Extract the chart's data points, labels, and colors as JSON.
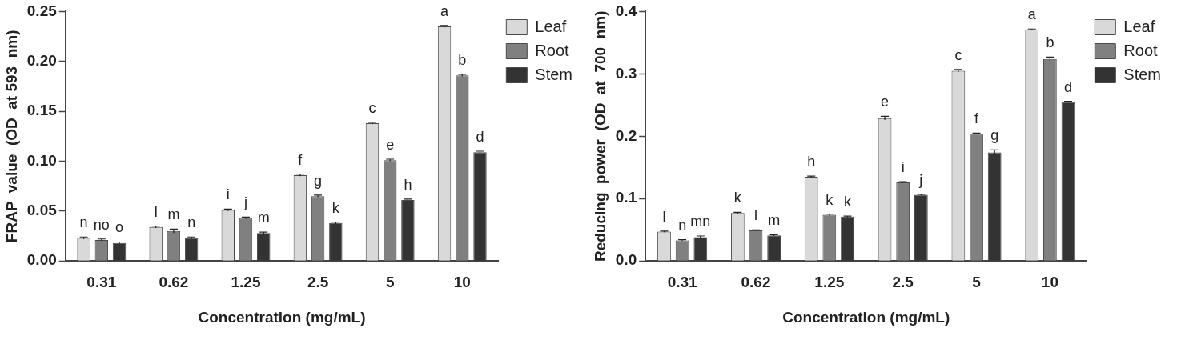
{
  "chart_data": [
    {
      "type": "bar",
      "categories": [
        "0.31",
        "0.62",
        "1.25",
        "2.5",
        "5",
        "10"
      ],
      "xlabel": "Concentration (mg/mL)",
      "ylabel": "FRAP  value  (OD  at 593  nm)",
      "series": [
        {
          "name": "Leaf",
          "color": "#d9d9d9",
          "values": [
            0.023,
            0.034,
            0.051,
            0.086,
            0.138,
            0.235
          ],
          "errors": [
            0.001,
            0.001,
            0.001,
            0.001,
            0.001,
            0.001
          ],
          "value_labels": [
            "n",
            "l",
            "i",
            "f",
            "c",
            "a"
          ]
        },
        {
          "name": "Root",
          "color": "#808080",
          "values": [
            0.021,
            0.03,
            0.043,
            0.065,
            0.101,
            0.186
          ],
          "errors": [
            0.001,
            0.002,
            0.001,
            0.001,
            0.001,
            0.001
          ],
          "value_labels": [
            "no",
            "m",
            "j",
            "g",
            "e",
            "b"
          ]
        },
        {
          "name": "Stem",
          "color": "#333333",
          "values": [
            0.018,
            0.023,
            0.028,
            0.038,
            0.061,
            0.109
          ],
          "errors": [
            0.001,
            0.001,
            0.001,
            0.001,
            0.001,
            0.001
          ],
          "value_labels": [
            "o",
            "n",
            "m",
            "k",
            "h",
            "d"
          ]
        }
      ],
      "ylim": [
        0,
        0.25
      ],
      "yticks": [
        {
          "value": 0,
          "label": "0.00"
        },
        {
          "value": 0.05,
          "label": "0.05"
        },
        {
          "value": 0.1,
          "label": "0.10"
        },
        {
          "value": 0.15,
          "label": "0.15"
        },
        {
          "value": 0.2,
          "label": "0.20"
        },
        {
          "value": 0.25,
          "label": "0.25"
        }
      ],
      "grid": false,
      "legend": "top right"
    },
    {
      "type": "bar",
      "categories": [
        "0.31",
        "0.62",
        "1.25",
        "2.5",
        "5",
        "10"
      ],
      "xlabel": "Concentration (mg/mL)",
      "ylabel": "Reducing  power  (OD  at  700  nm)",
      "series": [
        {
          "name": "Leaf",
          "color": "#d9d9d9",
          "values": [
            0.047,
            0.077,
            0.135,
            0.229,
            0.305,
            0.371
          ],
          "errors": [
            0.001,
            0.001,
            0.001,
            0.003,
            0.002,
            0.001
          ],
          "value_labels": [
            "l",
            "k",
            "h",
            "e",
            "c",
            "a"
          ]
        },
        {
          "name": "Root",
          "color": "#808080",
          "values": [
            0.033,
            0.049,
            0.074,
            0.126,
            0.204,
            0.324
          ],
          "errors": [
            0.001,
            0.001,
            0.001,
            0.001,
            0.001,
            0.003
          ],
          "value_labels": [
            "n",
            "l",
            "k",
            "i",
            "f",
            "b"
          ]
        },
        {
          "name": "Stem",
          "color": "#333333",
          "values": [
            0.038,
            0.041,
            0.071,
            0.106,
            0.174,
            0.255
          ],
          "errors": [
            0.002,
            0.001,
            0.001,
            0.001,
            0.004,
            0.001
          ],
          "value_labels": [
            "mn",
            "m",
            "k",
            "j",
            "g",
            "d"
          ]
        }
      ],
      "ylim": [
        0,
        0.4
      ],
      "yticks": [
        {
          "value": 0,
          "label": "0.0"
        },
        {
          "value": 0.1,
          "label": "0.1"
        },
        {
          "value": 0.2,
          "label": "0.2"
        },
        {
          "value": 0.3,
          "label": "0.3"
        },
        {
          "value": 0.4,
          "label": "0.4"
        }
      ],
      "grid": false,
      "legend": "top right"
    }
  ]
}
